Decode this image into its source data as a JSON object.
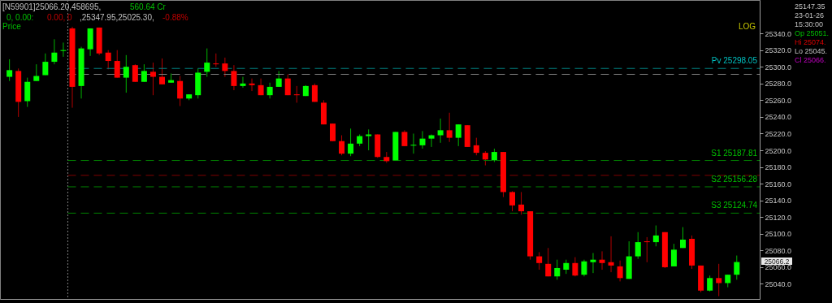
{
  "chart_data": {
    "type": "candlestick",
    "categories": [
      null,
      null,
      null,
      null,
      null,
      null,
      null,
      null,
      null,
      null,
      null,
      null,
      null,
      null,
      null,
      null,
      null,
      null,
      null,
      null,
      null,
      null,
      null,
      null,
      null,
      null,
      null,
      null,
      null,
      null,
      null,
      null,
      null,
      null,
      null,
      null,
      null,
      null,
      null,
      null,
      null,
      null,
      null,
      null,
      null,
      null,
      null,
      null,
      null,
      null,
      null,
      null,
      null,
      null,
      null,
      null,
      null,
      null,
      null,
      null,
      null,
      null,
      null,
      null,
      null,
      null,
      null,
      null,
      null,
      null,
      null,
      null,
      null,
      null,
      null,
      null,
      null,
      null,
      null,
      null,
      null,
      null
    ],
    "ohlc": [
      [
        25288,
        25309,
        25283,
        25296
      ],
      [
        25295,
        25298,
        25240,
        25258
      ],
      [
        25259,
        25287,
        25252,
        25282
      ],
      [
        25283,
        25303,
        25283,
        25289
      ],
      [
        25290,
        25316,
        25290,
        25306
      ],
      [
        25306,
        25333,
        25303,
        25317
      ],
      [
        25319,
        25329,
        25312,
        25320
      ],
      [
        25346,
        25347.95,
        25251,
        25276
      ],
      [
        25277,
        25324,
        25262,
        25322
      ],
      [
        25321,
        25346,
        25313,
        25346
      ],
      [
        25347,
        25347,
        25314,
        25316
      ],
      [
        25317,
        25320,
        25297,
        25307
      ],
      [
        25307,
        25320,
        25287,
        25287
      ],
      [
        25287,
        25314,
        25269,
        25300
      ],
      [
        25302,
        25303,
        25282,
        25282
      ],
      [
        25282,
        25303,
        25282,
        25295
      ],
      [
        25294,
        25305,
        25266,
        25288
      ],
      [
        25288,
        25310,
        25279,
        25279
      ],
      [
        25281,
        25292,
        25281,
        25284
      ],
      [
        25283,
        25289,
        25253,
        25262
      ],
      [
        25262,
        25267,
        25260,
        25267
      ],
      [
        25266,
        25298,
        25262,
        25293
      ],
      [
        25294,
        25322,
        25288,
        25305
      ],
      [
        25304,
        25316,
        25300,
        25303
      ],
      [
        25304,
        25311,
        25288,
        25295
      ],
      [
        25295,
        25302,
        25272,
        25277
      ],
      [
        25277,
        25288,
        25275,
        25280
      ],
      [
        25280,
        25286,
        25271,
        25278
      ],
      [
        25278,
        25286,
        25266,
        25266
      ],
      [
        25266,
        25281,
        25262,
        25276
      ],
      [
        25276,
        25295,
        25276,
        25286
      ],
      [
        25286,
        25291,
        25266,
        25266
      ],
      [
        25267,
        25277,
        25257,
        25266
      ],
      [
        25265,
        25278,
        25265,
        25277
      ],
      [
        25278,
        25280,
        25258,
        25258
      ],
      [
        25257,
        25260,
        25231,
        25231
      ],
      [
        25232,
        25232,
        25211,
        25211
      ],
      [
        25211,
        25218,
        25194,
        25196
      ],
      [
        25196,
        25226,
        25193,
        25208
      ],
      [
        25208,
        25219,
        25205,
        25217
      ],
      [
        25217,
        25225,
        25200,
        25219
      ],
      [
        25219,
        25219,
        25191,
        25192
      ],
      [
        25192,
        25198,
        25185,
        25187
      ],
      [
        25188,
        25222,
        25188,
        25222
      ],
      [
        25222,
        25224,
        25205,
        25205
      ],
      [
        25205.5,
        25220,
        25196,
        25206.5
      ],
      [
        25206,
        25223,
        25202,
        25214
      ],
      [
        25214,
        25219,
        25204,
        25218
      ],
      [
        25218,
        25238,
        25209,
        25224
      ],
      [
        25224,
        25245,
        25210,
        25215
      ],
      [
        25215,
        25231,
        25205,
        25231
      ],
      [
        25230,
        25230,
        25204,
        25204
      ],
      [
        25206,
        25215,
        25194,
        25197
      ],
      [
        25197,
        25199,
        25182,
        25189
      ],
      [
        25188,
        25202,
        25186,
        25198
      ],
      [
        25198,
        25198,
        25144,
        25150
      ],
      [
        25150,
        25151,
        25127,
        25134
      ],
      [
        25135,
        25150,
        25123,
        25127
      ],
      [
        25127,
        25127,
        25069,
        25073
      ],
      [
        25073,
        25078,
        25057,
        25065
      ],
      [
        25064,
        25083,
        25049,
        25049
      ],
      [
        25049,
        25069,
        25045,
        25059
      ],
      [
        25057,
        25069,
        25052,
        25065
      ],
      [
        25065,
        25072,
        25049,
        25050
      ],
      [
        25051,
        25069,
        25049,
        25067
      ],
      [
        25066,
        25077,
        25053,
        25069
      ],
      [
        25069,
        25079,
        25057,
        25065
      ],
      [
        25066,
        25097,
        25054,
        25062
      ],
      [
        25061,
        25068,
        25043,
        25047
      ],
      [
        25046,
        25091,
        25046,
        25073
      ],
      [
        25073,
        25102,
        25070,
        25090
      ],
      [
        25091,
        25096,
        25066,
        25090
      ],
      [
        25090,
        25110,
        25085,
        25098
      ],
      [
        25102,
        25102,
        25059,
        25060
      ],
      [
        25061,
        25088,
        25061,
        25081
      ],
      [
        25083,
        25108,
        25083,
        25093
      ],
      [
        25094,
        25098,
        25058,
        25062
      ],
      [
        25062,
        25062,
        25030,
        25032
      ],
      [
        25032,
        25050,
        25031,
        25047
      ],
      [
        25047,
        25064,
        25025.3,
        25041
      ],
      [
        25041,
        25051,
        25036,
        25051
      ],
      [
        25051,
        25074,
        25045,
        25066.2
      ]
    ],
    "colors": [
      "#00ff00",
      "#ff0000",
      "#00ff00",
      "#00ff00",
      "#00ff00",
      "#00ff00",
      "#00ff00",
      "#ff0000",
      "#00ff00",
      "#00ff00",
      "#ff0000",
      "#ff0000",
      "#ff0000",
      "#00ff00",
      "#ff0000",
      "#00ff00",
      "#ff0000",
      "#ff0000",
      "#00ff00",
      "#ff0000",
      "#00ff00",
      "#00ff00",
      "#00ff00",
      "#ff0000",
      "#ff0000",
      "#ff0000",
      "#00ff00",
      "#ff0000",
      "#ff0000",
      "#00ff00",
      "#00ff00",
      "#ff0000",
      "#ff0000",
      "#00ff00",
      "#ff0000",
      "#ff0000",
      "#ff0000",
      "#ff0000",
      "#00ff00",
      "#00ff00",
      "#00ff00",
      "#ff0000",
      "#ff0000",
      "#00ff00",
      "#ff0000",
      "#00ff00",
      "#00ff00",
      "#00ff00",
      "#00ff00",
      "#ff0000",
      "#00ff00",
      "#ff0000",
      "#ff0000",
      "#ff0000",
      "#00ff00",
      "#ff0000",
      "#ff0000",
      "#ff0000",
      "#ff0000",
      "#ff0000",
      "#ff0000",
      "#00ff00",
      "#00ff00",
      "#ff0000",
      "#00ff00",
      "#00ff00",
      "#ff0000",
      "#ff0000",
      "#ff0000",
      "#00ff00",
      "#00ff00",
      "#ff0000",
      "#00ff00",
      "#ff0000",
      "#00ff00",
      "#00ff00",
      "#ff0000",
      "#ff0000",
      "#00ff00",
      "#ff0000",
      "#00ff00",
      "#00ff00"
    ],
    "ylim": [
      25022,
      25380
    ],
    "yticks": [
      {
        "value": 25040,
        "label": "25040.0"
      },
      {
        "value": 25060,
        "label": "25060.0"
      },
      {
        "value": 25080,
        "label": "25080.0"
      },
      {
        "value": 25100,
        "label": "25100.0"
      },
      {
        "value": 25120,
        "label": "25120.0"
      },
      {
        "value": 25140,
        "label": "25140.0"
      },
      {
        "value": 25160,
        "label": "25160.0"
      },
      {
        "value": 25180,
        "label": "25180.0"
      },
      {
        "value": 25200,
        "label": "25200.0"
      },
      {
        "value": 25220,
        "label": "25220.0"
      },
      {
        "value": 25240,
        "label": "25240.0"
      },
      {
        "value": 25260,
        "label": "25260.0"
      },
      {
        "value": 25280,
        "label": "25280.0"
      },
      {
        "value": 25300,
        "label": "25300.0"
      },
      {
        "value": 25320,
        "label": "25320.0"
      },
      {
        "value": 25340,
        "label": "25340.0"
      }
    ],
    "tick_labels": "y",
    "grid": false,
    "ref_lines": [
      {
        "axis": "y",
        "value": 25298.05,
        "label": "Pv 25298.05",
        "color": "#008080",
        "line_style": "dashed"
      },
      {
        "axis": "y",
        "value": 25291,
        "label": null,
        "color": "#808080",
        "line_style": "dashed"
      },
      {
        "axis": "y",
        "value": 25187.81,
        "label": "S1 25187.81",
        "color": "#008000",
        "line_style": "dashed"
      },
      {
        "axis": "y",
        "value": 25170,
        "label": null,
        "color": "#800000",
        "line_style": "dashed"
      },
      {
        "axis": "y",
        "value": 25156.28,
        "label": "S2 25156.28",
        "color": "#008000",
        "line_style": "dashed"
      },
      {
        "axis": "y",
        "value": 25124.74,
        "label": "S3 25124.74",
        "color": "#008000",
        "line_style": "dashed"
      }
    ],
    "annotations": [
      "[N59901]25066.20,458695,",
      "560.64  Cr",
      "0,   0.00:",
      "0.00,  0",
      ",25347.95,25025.30,",
      "-0.88%",
      "Price",
      "LOG",
      "25147.35",
      "23-01-26",
      "15:30:00",
      "Op 25051.",
      "Hi 25074.",
      "Lo 25045.",
      "Cl 25066.",
      "25066.2"
    ]
  }
}
